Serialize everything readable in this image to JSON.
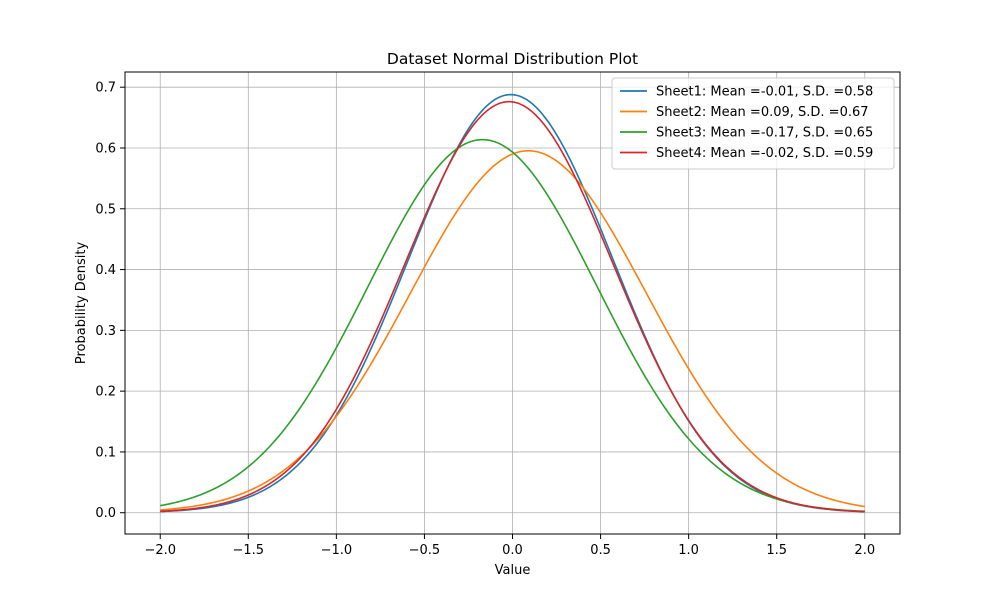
{
  "chart_data": {
    "type": "line",
    "title": "Dataset Normal Distribution Plot",
    "xlabel": "Value",
    "ylabel": "Probability Density",
    "xlim": [
      -2.2,
      2.2
    ],
    "ylim": [
      -0.035,
      0.725
    ],
    "x_ticks": [
      -2.0,
      -1.5,
      -1.0,
      -0.5,
      0.0,
      0.5,
      1.0,
      1.5,
      2.0
    ],
    "y_ticks": [
      0.0,
      0.1,
      0.2,
      0.3,
      0.4,
      0.5,
      0.6,
      0.7
    ],
    "x_tick_labels": [
      "−2.0",
      "−1.5",
      "−1.0",
      "−0.5",
      "0.0",
      "0.5",
      "1.0",
      "1.5",
      "2.0"
    ],
    "y_tick_labels": [
      "0.0",
      "0.1",
      "0.2",
      "0.3",
      "0.4",
      "0.5",
      "0.6",
      "0.7"
    ],
    "grid": true,
    "legend_position": "top-right",
    "x_range": [
      -2.0,
      2.0
    ],
    "series": [
      {
        "name": "Sheet1: Mean =-0.01, S.D. =0.58",
        "mean": -0.01,
        "sd": 0.58,
        "color": "#1f77b4"
      },
      {
        "name": "Sheet2: Mean =0.09, S.D. =0.67",
        "mean": 0.09,
        "sd": 0.67,
        "color": "#ff7f0e"
      },
      {
        "name": "Sheet3: Mean =-0.17, S.D. =0.65",
        "mean": -0.17,
        "sd": 0.65,
        "color": "#2ca02c"
      },
      {
        "name": "Sheet4: Mean =-0.02, S.D. =0.59",
        "mean": -0.02,
        "sd": 0.59,
        "color": "#d62728"
      }
    ]
  }
}
